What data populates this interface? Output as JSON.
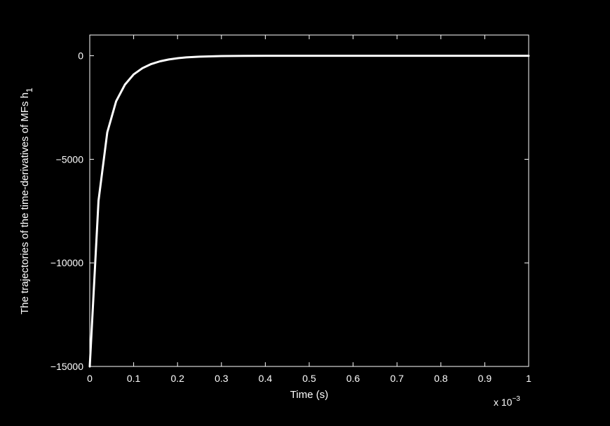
{
  "figure": {
    "background": "#000000",
    "foreground": "#ffffff"
  },
  "chart_data": {
    "type": "line",
    "title": "",
    "xlabel": "Time (s)",
    "ylabel": "The trajectories of the time-derivatives of MFs h",
    "ylabel_subscript": "1",
    "x_exponent_label": "x 10",
    "x_exponent_value": "−3",
    "xlim": [
      0,
      1
    ],
    "ylim": [
      -15000,
      1000
    ],
    "x_ticks": [
      0,
      0.1,
      0.2,
      0.3,
      0.4,
      0.5,
      0.6,
      0.7,
      0.8,
      0.9,
      1
    ],
    "x_tick_labels": [
      "0",
      "0.1",
      "0.2",
      "0.3",
      "0.4",
      "0.5",
      "0.6",
      "0.7",
      "0.8",
      "0.9",
      "1"
    ],
    "y_ticks": [
      -15000,
      -10000,
      -5000,
      0
    ],
    "y_tick_labels": [
      "−15000",
      "−10000",
      "−5000",
      "0"
    ],
    "grid": false,
    "series": [
      {
        "color": "#ffffff",
        "x": [
          0,
          0.02,
          0.04,
          0.06,
          0.08,
          0.1,
          0.12,
          0.14,
          0.16,
          0.18,
          0.2,
          0.22,
          0.25,
          0.3,
          0.35,
          0.4,
          0.5,
          0.6,
          0.7,
          0.8,
          0.9,
          1.0
        ],
        "y": [
          -15000,
          -7000,
          -3700,
          -2200,
          -1400,
          -900,
          -600,
          -400,
          -270,
          -180,
          -120,
          -80,
          -45,
          -15,
          -5,
          0,
          0,
          0,
          0,
          0,
          0,
          0
        ]
      }
    ]
  }
}
